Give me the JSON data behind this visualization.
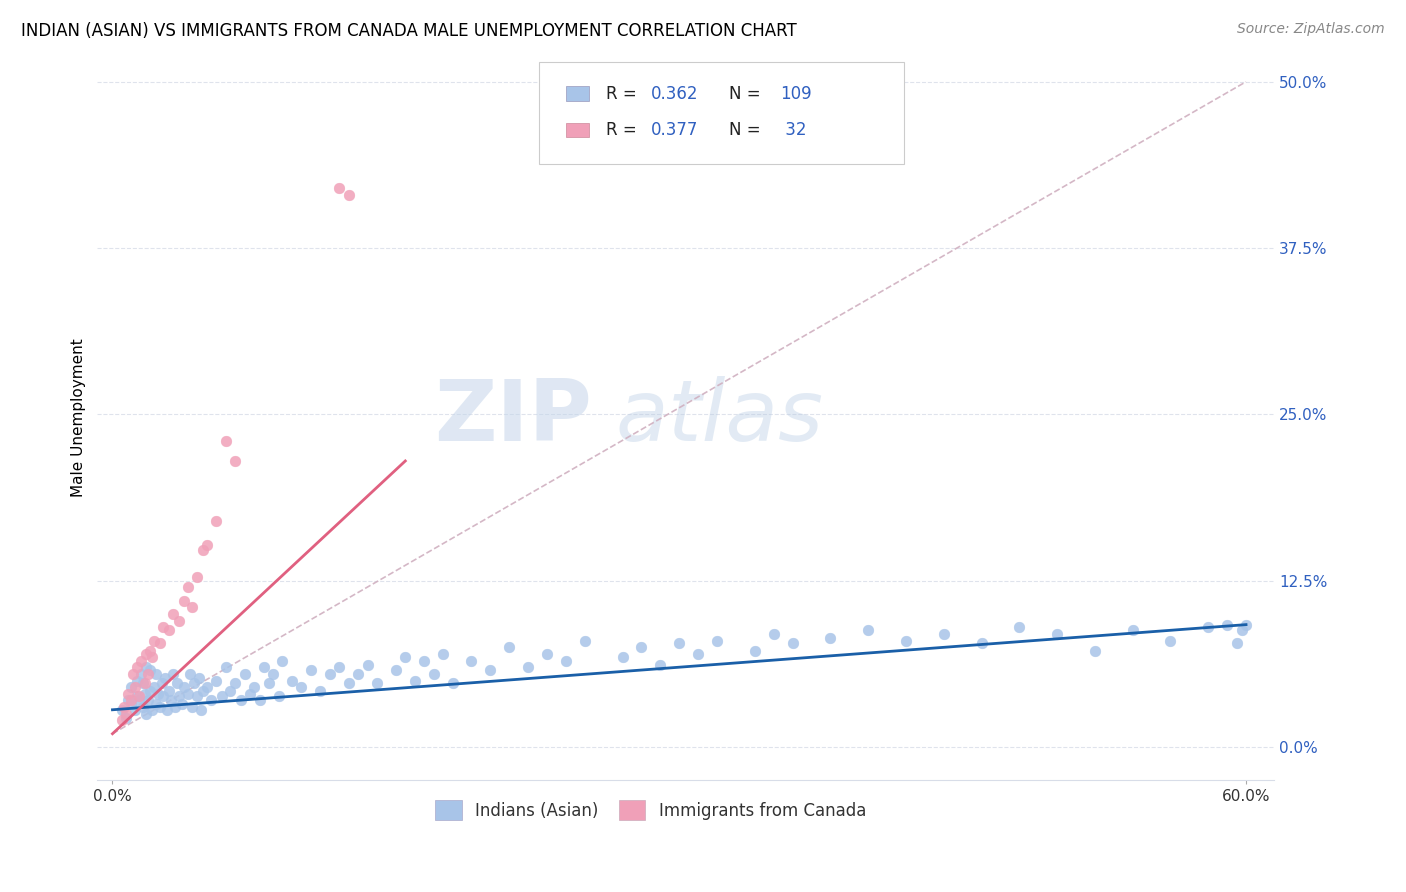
{
  "title": "INDIAN (ASIAN) VS IMMIGRANTS FROM CANADA MALE UNEMPLOYMENT CORRELATION CHART",
  "source": "Source: ZipAtlas.com",
  "ylabel": "Male Unemployment",
  "xlim": [
    0.0,
    0.6
  ],
  "ylim": [
    0.0,
    0.5
  ],
  "y_ticks": [
    0.0,
    0.125,
    0.25,
    0.375,
    0.5
  ],
  "y_ticklabels": [
    "0.0%",
    "12.5%",
    "25.0%",
    "37.5%",
    "50.0%"
  ],
  "x_ticks": [
    0.0,
    0.6
  ],
  "x_ticklabels": [
    "0.0%",
    "60.0%"
  ],
  "legend_labels_bottom": [
    "Indians (Asian)",
    "Immigrants from Canada"
  ],
  "watermark_zip": "ZIP",
  "watermark_atlas": "atlas",
  "title_fontsize": 12,
  "axis_label_fontsize": 11,
  "tick_fontsize": 11,
  "source_fontsize": 10,
  "blue_scatter_color": "#a8c4e8",
  "pink_scatter_color": "#f0a0b8",
  "blue_line_color": "#1a5fa8",
  "pink_line_color": "#e06080",
  "dashed_line_color": "#d0b0c0",
  "tick_color": "#3060c0",
  "R_blue": 0.362,
  "N_blue": 109,
  "R_pink": 0.377,
  "N_pink": 32,
  "blue_x": [
    0.005,
    0.007,
    0.008,
    0.01,
    0.01,
    0.012,
    0.013,
    0.013,
    0.014,
    0.015,
    0.016,
    0.016,
    0.017,
    0.018,
    0.018,
    0.019,
    0.02,
    0.02,
    0.021,
    0.022,
    0.023,
    0.023,
    0.024,
    0.025,
    0.026,
    0.027,
    0.028,
    0.029,
    0.03,
    0.031,
    0.032,
    0.033,
    0.034,
    0.035,
    0.037,
    0.038,
    0.04,
    0.041,
    0.042,
    0.043,
    0.045,
    0.046,
    0.047,
    0.048,
    0.05,
    0.052,
    0.055,
    0.058,
    0.06,
    0.062,
    0.065,
    0.068,
    0.07,
    0.073,
    0.075,
    0.078,
    0.08,
    0.083,
    0.085,
    0.088,
    0.09,
    0.095,
    0.1,
    0.105,
    0.11,
    0.115,
    0.12,
    0.125,
    0.13,
    0.135,
    0.14,
    0.15,
    0.155,
    0.16,
    0.165,
    0.17,
    0.175,
    0.18,
    0.19,
    0.2,
    0.21,
    0.22,
    0.23,
    0.24,
    0.25,
    0.27,
    0.28,
    0.29,
    0.3,
    0.31,
    0.32,
    0.34,
    0.35,
    0.36,
    0.38,
    0.4,
    0.42,
    0.44,
    0.46,
    0.48,
    0.5,
    0.52,
    0.54,
    0.56,
    0.58,
    0.59,
    0.595,
    0.598,
    0.6
  ],
  "blue_y": [
    0.028,
    0.022,
    0.035,
    0.032,
    0.045,
    0.028,
    0.038,
    0.05,
    0.035,
    0.055,
    0.03,
    0.048,
    0.04,
    0.025,
    0.06,
    0.035,
    0.042,
    0.058,
    0.028,
    0.045,
    0.032,
    0.055,
    0.04,
    0.03,
    0.048,
    0.038,
    0.052,
    0.028,
    0.042,
    0.035,
    0.055,
    0.03,
    0.048,
    0.038,
    0.032,
    0.045,
    0.04,
    0.055,
    0.03,
    0.048,
    0.038,
    0.052,
    0.028,
    0.042,
    0.045,
    0.035,
    0.05,
    0.038,
    0.06,
    0.042,
    0.048,
    0.035,
    0.055,
    0.04,
    0.045,
    0.035,
    0.06,
    0.048,
    0.055,
    0.038,
    0.065,
    0.05,
    0.045,
    0.058,
    0.042,
    0.055,
    0.06,
    0.048,
    0.055,
    0.062,
    0.048,
    0.058,
    0.068,
    0.05,
    0.065,
    0.055,
    0.07,
    0.048,
    0.065,
    0.058,
    0.075,
    0.06,
    0.07,
    0.065,
    0.08,
    0.068,
    0.075,
    0.062,
    0.078,
    0.07,
    0.08,
    0.072,
    0.085,
    0.078,
    0.082,
    0.088,
    0.08,
    0.085,
    0.078,
    0.09,
    0.085,
    0.072,
    0.088,
    0.08,
    0.09,
    0.092,
    0.078,
    0.088,
    0.092
  ],
  "pink_x": [
    0.005,
    0.006,
    0.007,
    0.008,
    0.01,
    0.011,
    0.012,
    0.013,
    0.014,
    0.015,
    0.017,
    0.018,
    0.019,
    0.02,
    0.021,
    0.022,
    0.025,
    0.027,
    0.03,
    0.032,
    0.035,
    0.038,
    0.04,
    0.042,
    0.045,
    0.048,
    0.05,
    0.055,
    0.06,
    0.065,
    0.12,
    0.125
  ],
  "pink_y": [
    0.02,
    0.03,
    0.025,
    0.04,
    0.035,
    0.055,
    0.045,
    0.06,
    0.038,
    0.065,
    0.048,
    0.07,
    0.055,
    0.072,
    0.068,
    0.08,
    0.078,
    0.09,
    0.088,
    0.1,
    0.095,
    0.11,
    0.12,
    0.105,
    0.128,
    0.148,
    0.152,
    0.17,
    0.23,
    0.215,
    0.42,
    0.415
  ],
  "blue_line_x": [
    0.0,
    0.6
  ],
  "blue_line_y": [
    0.028,
    0.092
  ],
  "pink_line_x": [
    0.0,
    0.155
  ],
  "pink_line_y": [
    0.01,
    0.215
  ],
  "dash_line_x": [
    0.0,
    0.6
  ],
  "dash_line_y": [
    0.01,
    0.5
  ]
}
